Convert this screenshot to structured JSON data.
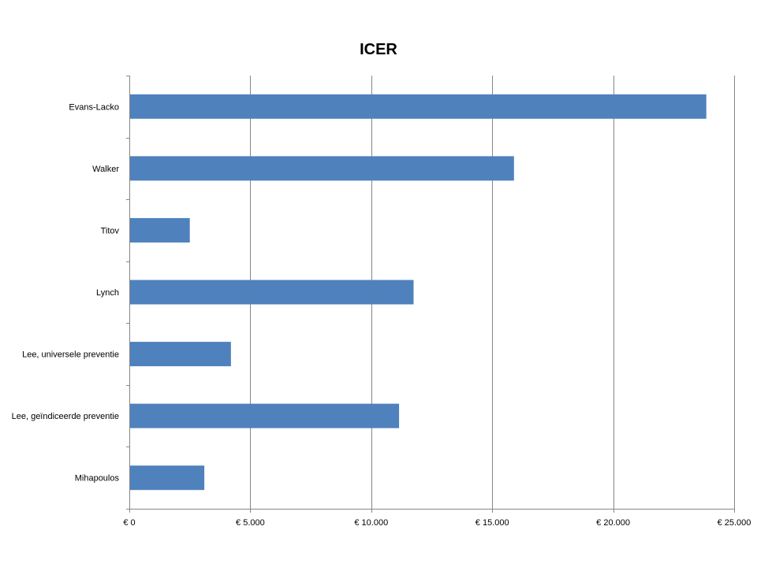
{
  "chart_data": {
    "type": "bar",
    "orientation": "horizontal",
    "title": "ICER",
    "categories": [
      "Evans-Lacko",
      "Walker",
      "Titov",
      "Lynch",
      "Lee, universele preventie",
      "Lee, geïndiceerde preventie",
      "Mihapoulos"
    ],
    "values": [
      23850,
      15900,
      2500,
      11750,
      4200,
      11150,
      3100
    ],
    "xlim": [
      0,
      25000
    ],
    "x_ticks": [
      0,
      5000,
      10000,
      15000,
      20000,
      25000
    ],
    "x_tick_labels": [
      "€ 0",
      "€ 5.000",
      "€ 10.000",
      "€ 15.000",
      "€ 20.000",
      "€ 25.000"
    ],
    "xlabel": "",
    "ylabel": "",
    "grid": "vertical",
    "legend": "none",
    "bar_color": "#4f81bd",
    "grid_color": "#868686"
  }
}
